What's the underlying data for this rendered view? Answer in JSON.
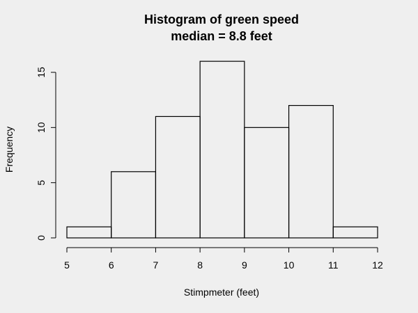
{
  "chart_data": {
    "type": "bar",
    "title": "Histogram of green speed",
    "subtitle": "median = 8.8 feet",
    "xlabel": "Stimpmeter (feet)",
    "ylabel": "Frequency",
    "bins": [
      {
        "from": 5,
        "to": 6,
        "count": 1
      },
      {
        "from": 6,
        "to": 7,
        "count": 6
      },
      {
        "from": 7,
        "to": 8,
        "count": 11
      },
      {
        "from": 8,
        "to": 9,
        "count": 16
      },
      {
        "from": 9,
        "to": 10,
        "count": 10
      },
      {
        "from": 10,
        "to": 11,
        "count": 12
      },
      {
        "from": 11,
        "to": 12,
        "count": 1
      }
    ],
    "xlim": [
      5,
      12
    ],
    "ylim": [
      0,
      16
    ],
    "xticks": [
      5,
      6,
      7,
      8,
      9,
      10,
      11,
      12
    ],
    "yticks": [
      0,
      5,
      10,
      15
    ],
    "grid": false,
    "colors": {
      "background": "#efefef",
      "bar_fill": "none",
      "stroke": "#000000"
    }
  }
}
